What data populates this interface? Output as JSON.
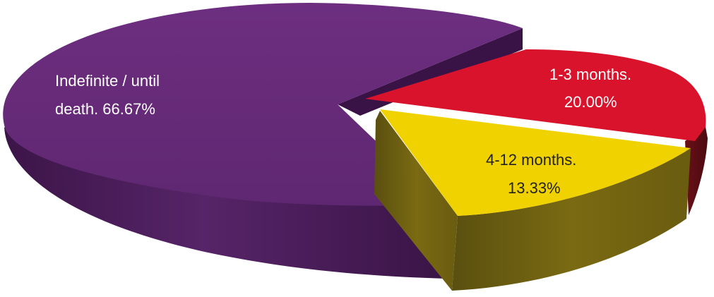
{
  "chart_data": {
    "type": "pie",
    "style": "3d-exploded",
    "slices": [
      {
        "label_line1": "Indefinite / until",
        "label_line2": "death. 66.67%",
        "name": "Indefinite / until death.",
        "value": 66.67,
        "color": "#652a77"
      },
      {
        "label_line1": "1-3 months.",
        "label_line2": "20.00%",
        "name": "1-3 months.",
        "value": 20.0,
        "color": "#d9132c"
      },
      {
        "label_line1": "4-12 months.",
        "label_line2": "13.33%",
        "name": "4-12 months.",
        "value": 13.33,
        "color": "#f0d200"
      }
    ]
  }
}
